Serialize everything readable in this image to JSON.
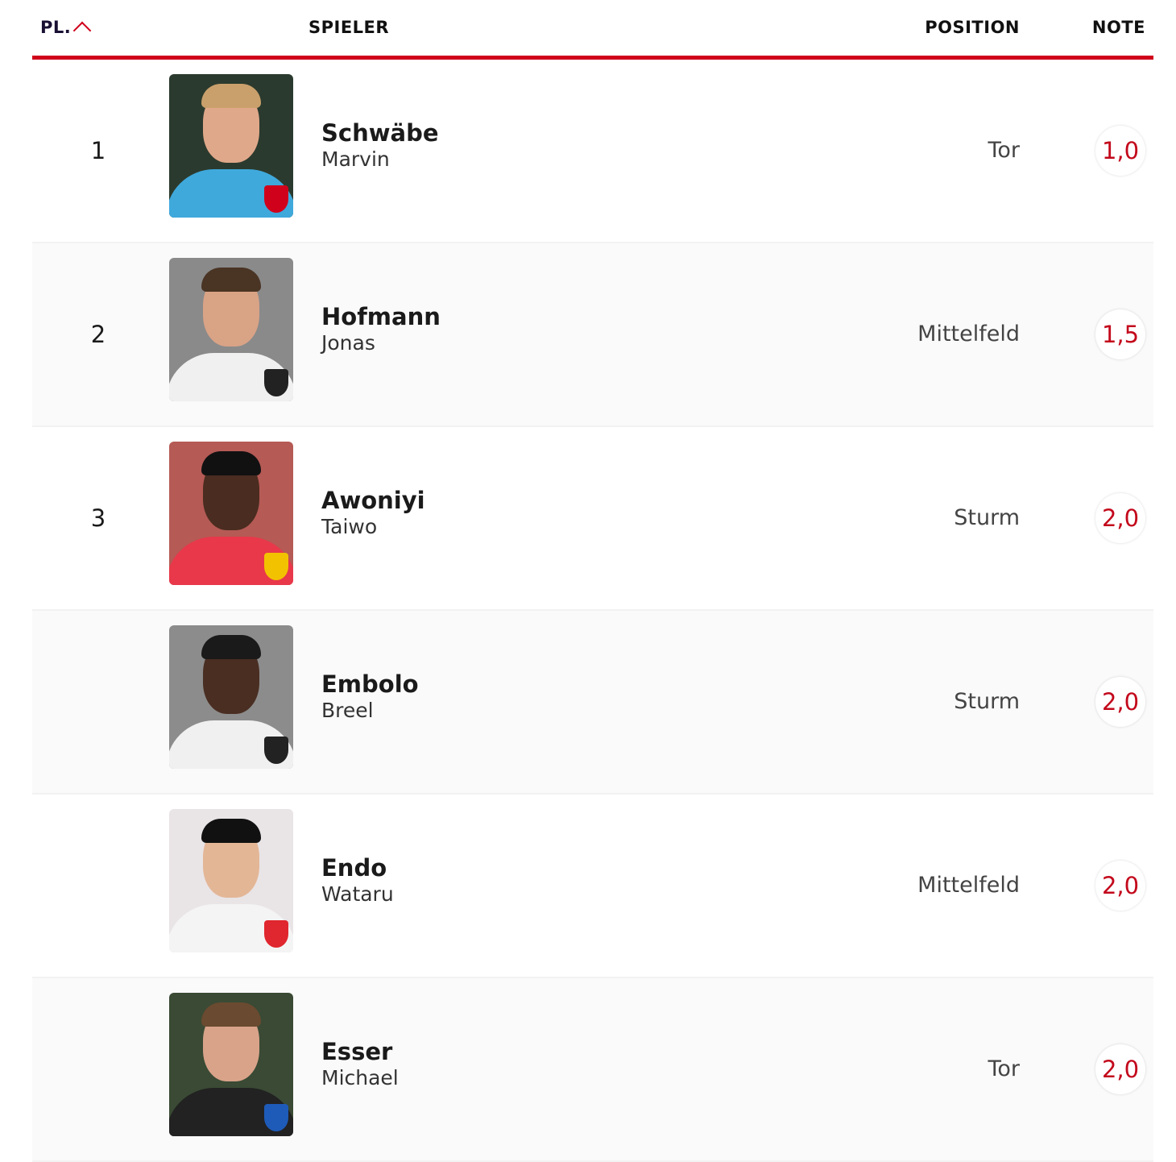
{
  "header": {
    "rank": "PL.",
    "player": "SPIELER",
    "position": "POSITION",
    "grade": "NOTE",
    "sort_icon": "chevron-up-icon"
  },
  "colors": {
    "accent": "#d0021b",
    "grade": "#c3081b"
  },
  "rows": [
    {
      "rank": "1",
      "last": "Schwäbe",
      "first": "Marvin",
      "position": "Tor",
      "grade": "1,0",
      "photo": {
        "bg": "#2b3a2e",
        "skin": "#e0a88a",
        "hair": "#c9a06c",
        "shirt": "#3fa9dc",
        "crest": "#d0021b"
      }
    },
    {
      "rank": "2",
      "last": "Hofmann",
      "first": "Jonas",
      "position": "Mittelfeld",
      "grade": "1,5",
      "photo": {
        "bg": "#8a8a8a",
        "skin": "#d9a386",
        "hair": "#4a3424",
        "shirt": "#f0f0f0",
        "crest": "#222222"
      }
    },
    {
      "rank": "3",
      "last": "Awoniyi",
      "first": "Taiwo",
      "position": "Sturm",
      "grade": "2,0",
      "photo": {
        "bg": "#b55a55",
        "skin": "#4a2c20",
        "hair": "#111111",
        "shirt": "#e8384a",
        "crest": "#f2c200"
      }
    },
    {
      "rank": "",
      "last": "Embolo",
      "first": "Breel",
      "position": "Sturm",
      "grade": "2,0",
      "photo": {
        "bg": "#8c8c8c",
        "skin": "#4a2e22",
        "hair": "#1a1a1a",
        "shirt": "#f0f0f0",
        "crest": "#222222"
      }
    },
    {
      "rank": "",
      "last": "Endo",
      "first": "Wataru",
      "position": "Mittelfeld",
      "grade": "2,0",
      "photo": {
        "bg": "#e9e4e6",
        "skin": "#e3b696",
        "hair": "#111111",
        "shirt": "#f4f4f4",
        "crest": "#e0262e"
      }
    },
    {
      "rank": "",
      "last": "Esser",
      "first": "Michael",
      "position": "Tor",
      "grade": "2,0",
      "photo": {
        "bg": "#3a4a34",
        "skin": "#d9a38a",
        "hair": "#6a4a30",
        "shirt": "#222222",
        "crest": "#1e5bb8"
      }
    }
  ]
}
